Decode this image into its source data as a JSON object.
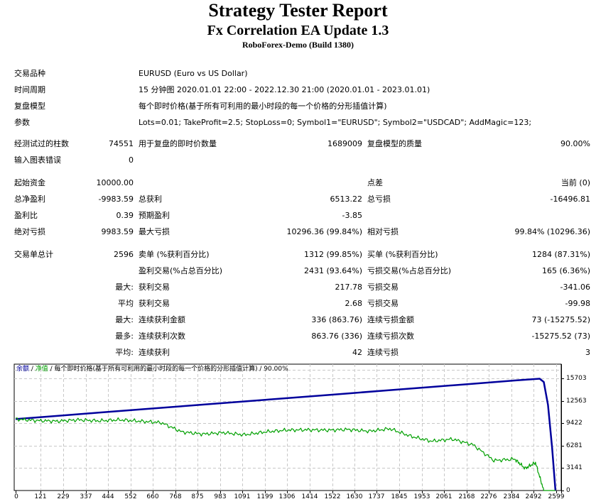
{
  "header": {
    "title": "Strategy Tester Report",
    "ea_name": "Fx Correlation EA Update 1.3",
    "server": "RoboForex-Demo (Build 1380)"
  },
  "info": {
    "symbol_label": "交易品种",
    "symbol_value": "EURUSD (Euro vs US Dollar)",
    "period_label": "时间周期",
    "period_value": "15 分钟图 2020.01.01 22:00 - 2022.12.30 21:00 (2020.01.01 - 2023.01.01)",
    "model_label": "复盘模型",
    "model_value": "每个即时价格(基于所有可利用的最小时段的每一个价格的分形插值计算)",
    "params_label": "参数",
    "params_value": "Lots=0.01; TakeProfit=2.5; StopLoss=0; Symbol1=\"EURUSD\"; Symbol2=\"USDCAD\"; AddMagic=123;"
  },
  "stats": {
    "bars_label": "经测试过的柱数",
    "bars_value": "74551",
    "ticks_label": "用于复盘的即时价数量",
    "ticks_value": "1689009",
    "quality_label": "复盘模型的质量",
    "quality_value": "90.00%",
    "errors_label": "输入图表错误",
    "errors_value": "0",
    "deposit_label": "起始资金",
    "deposit_value": "10000.00",
    "spread_label": "点差",
    "spread_value": "当前 (0)",
    "net_profit_label": "总净盈利",
    "net_profit_value": "-9983.59",
    "gross_profit_label": "总获利",
    "gross_profit_value": "6513.22",
    "gross_loss_label": "总亏损",
    "gross_loss_value": "-16496.81",
    "profit_factor_label": "盈利比",
    "profit_factor_value": "0.39",
    "expected_payoff_label": "预期盈利",
    "expected_payoff_value": "-3.85",
    "abs_dd_label": "绝对亏损",
    "abs_dd_value": "9983.59",
    "max_dd_label": "最大亏损",
    "max_dd_value": "10296.36 (99.84%)",
    "rel_dd_label": "相对亏损",
    "rel_dd_value": "99.84% (10296.36)",
    "total_trades_label": "交易单总计",
    "total_trades_value": "2596",
    "short_label": "卖单 (%获利百分比)",
    "short_value": "1312 (99.85%)",
    "long_label": "买单 (%获利百分比)",
    "long_value": "1284 (87.31%)",
    "profit_trades_label": "盈利交易(%占总百分比)",
    "profit_trades_value": "2431 (93.64%)",
    "loss_trades_label": "亏损交易(%占总百分比)",
    "loss_trades_value": "165 (6.36%)",
    "largest_prefix": "最大:",
    "largest_profit_label": "获利交易",
    "largest_profit_value": "217.78",
    "largest_loss_label": "亏损交易",
    "largest_loss_value": "-341.06",
    "average_prefix": "平均",
    "avg_profit_label": "获利交易",
    "avg_profit_value": "2.68",
    "avg_loss_label": "亏损交易",
    "avg_loss_value": "-99.98",
    "max_prefix": "最大:",
    "max_consec_wins_label": "连续获利金额",
    "max_consec_wins_value": "336 (863.76)",
    "max_consec_losses_label": "连续亏损金额",
    "max_consec_losses_value": "73 (-15275.52)",
    "maximal_prefix": "最多:",
    "maximal_consec_profit_label": "连续获利次数",
    "maximal_consec_profit_value": "863.76 (336)",
    "maximal_consec_loss_label": "连续亏损次数",
    "maximal_consec_loss_value": "-15275.52 (73)",
    "avg_consec_prefix": "平均:",
    "avg_consec_wins_label": "连续获利",
    "avg_consec_wins_value": "42",
    "avg_consec_losses_label": "连续亏损",
    "avg_consec_losses_value": "3"
  },
  "chart_legend": {
    "balance": "余额",
    "sep1": " / ",
    "equity": "净值",
    "sep2": " / 每个即时价格(基于所有可利用的最小时段的每一个价格的分形插值计算) / 90.00%"
  },
  "colors": {
    "balance": "#00009c",
    "equity": "#00a000",
    "grid": "#c8c8c8"
  },
  "chart_data": {
    "type": "line",
    "title": "余额 / 净值 / 每个即时价格(基于所有可利用的最小时段的每一个价格的分形插值计算) / 90.00%",
    "xlabel": "",
    "ylabel": "",
    "x_ticks": [
      0,
      121,
      229,
      337,
      444,
      552,
      660,
      768,
      875,
      983,
      1091,
      1199,
      1306,
      1414,
      1522,
      1630,
      1737,
      1845,
      1953,
      2061,
      2168,
      2276,
      2384,
      2492,
      2599
    ],
    "y_ticks": [
      0,
      3141,
      6281,
      9422,
      12563,
      15703
    ],
    "ylim": [
      0,
      17000
    ],
    "xlim": [
      0,
      2610
    ],
    "grid": true,
    "series": [
      {
        "name": "余额",
        "color": "#00009c",
        "x": [
          0,
          200,
          400,
          600,
          800,
          1000,
          1200,
          1400,
          1600,
          1800,
          2000,
          2200,
          2400,
          2520,
          2540,
          2560,
          2580,
          2596
        ],
        "values": [
          10000,
          10450,
          10900,
          11350,
          11800,
          12250,
          12700,
          13150,
          13600,
          14050,
          14500,
          14950,
          15400,
          15650,
          15200,
          12000,
          6000,
          16
        ]
      },
      {
        "name": "净值",
        "color": "#00a000",
        "x": [
          0,
          100,
          200,
          300,
          400,
          500,
          600,
          700,
          800,
          900,
          1000,
          1100,
          1200,
          1300,
          1400,
          1500,
          1600,
          1700,
          1800,
          1900,
          2000,
          2100,
          2200,
          2300,
          2400,
          2450,
          2500,
          2540,
          2596
        ],
        "values": [
          10000,
          9800,
          9700,
          9900,
          9750,
          9900,
          9700,
          9500,
          8200,
          7900,
          8100,
          7800,
          8200,
          8450,
          8500,
          8450,
          8550,
          8300,
          8650,
          7600,
          6900,
          7200,
          6400,
          4200,
          4400,
          3100,
          3900,
          0,
          0
        ]
      }
    ]
  }
}
